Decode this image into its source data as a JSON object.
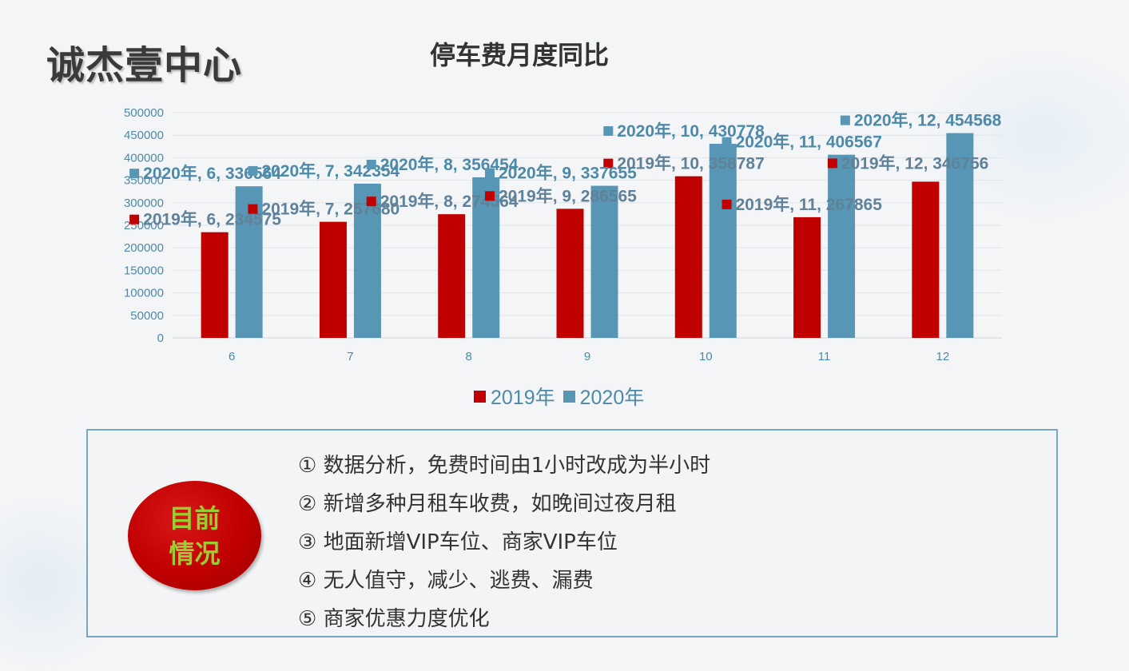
{
  "header": {
    "brand": "诚杰壹中心",
    "title": "停车费月度同比"
  },
  "chart_data": {
    "type": "bar",
    "categories": [
      "6",
      "7",
      "8",
      "9",
      "10",
      "11",
      "12"
    ],
    "series": [
      {
        "name": "2019年",
        "color": "#c00000",
        "values": [
          234575,
          257680,
          274564,
          286565,
          358787,
          267865,
          346756
        ]
      },
      {
        "name": "2020年",
        "color": "#5896b5",
        "values": [
          336564,
          342354,
          356454,
          337655,
          430778,
          406567,
          454568
        ]
      }
    ],
    "ylim": [
      0,
      500000
    ],
    "yticks": [
      "0",
      "50000",
      "100000",
      "150000",
      "200000",
      "250000",
      "300000",
      "350000",
      "400000",
      "450000",
      "500000"
    ],
    "grid": true,
    "legend_position": "bottom",
    "data_labels": [
      "2019年, 6, 234575",
      "2019年, 7, 257680",
      "2019年, 8, 274564",
      "2019年, 9, 286565",
      "2019年, 10, 358787",
      "2019年, 11, 267865",
      "2019年, 12, 346756",
      "2020年, 6, 336564",
      "2020年, 7, 342354",
      "2020年, 8, 356454",
      "2020年, 9, 337655",
      "2020年, 10, 430778",
      "2020年, 11, 406567",
      "2020年, 12, 454568"
    ]
  },
  "status": {
    "badge_line1": "目前",
    "badge_line2": "情况",
    "items": [
      "① 数据分析，免费时间由1小时改成为半小时",
      "② 新增多种月租车收费，如晚间过夜月租",
      "③ 地面新增VIP车位、商家VIP车位",
      "④ 无人值守，减少、逃费、漏费",
      "⑤ 商家优惠力度优化"
    ]
  }
}
